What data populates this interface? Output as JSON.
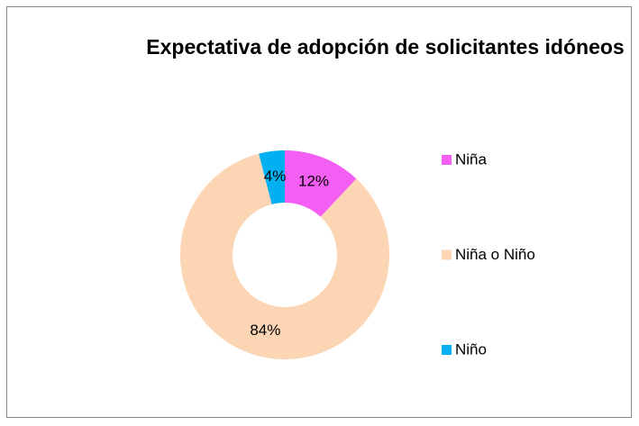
{
  "chart_data": {
    "type": "donut",
    "title": "Expectativa de adopción de solicitantes idóneos",
    "categories": [
      "Niña",
      "Niña o Niño",
      "Niño"
    ],
    "values": [
      12,
      84,
      4
    ],
    "value_labels": [
      "12%",
      "84%",
      "4%"
    ],
    "colors": [
      "#f35ef3",
      "#fcd5b4",
      "#00b0f0"
    ],
    "legend": "right"
  }
}
